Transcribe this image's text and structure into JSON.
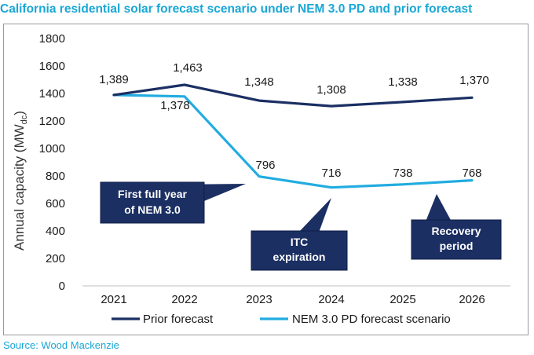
{
  "page": {
    "title": "California residential solar forecast scenario under NEM 3.0 PD and prior forecast",
    "source": "Source: Wood Mackenzie"
  },
  "colors": {
    "title": "#1aa7d6",
    "prior": "#1b2f63",
    "nem": "#22ace0",
    "callout_fill": "#1b2f63",
    "axis_text": "#1a1a1a"
  },
  "chart_data": {
    "type": "line",
    "ylabel_main": "Annual capacity (MW",
    "ylabel_sub": "dc",
    "ylabel_close": ")",
    "ylim": [
      0,
      1800
    ],
    "yticks": [
      0,
      200,
      400,
      600,
      800,
      1000,
      1200,
      1400,
      1600,
      1800
    ],
    "ytick_labels": [
      "0",
      "200",
      "400",
      "600",
      "800",
      "1000",
      "1200",
      "1400",
      "1600",
      "1800"
    ],
    "categories": [
      "2021",
      "2022",
      "2023",
      "2024",
      "2025",
      "2026"
    ],
    "grid": false,
    "legend_position": "bottom",
    "series": [
      {
        "name": "Prior forecast",
        "color": "#1b2f63",
        "values": [
          1389,
          1463,
          1348,
          1308,
          1338,
          1370
        ],
        "labels": [
          "1,389",
          "1,463",
          "1,348",
          "1,308",
          "1,338",
          "1,370"
        ]
      },
      {
        "name": "NEM 3.0 PD forecast scenario",
        "color": "#22ace0",
        "values": [
          1389,
          1378,
          796,
          716,
          738,
          768
        ],
        "labels": [
          "",
          "1,378",
          "796",
          "716",
          "738",
          "768"
        ]
      }
    ],
    "annotations": [
      {
        "lines": [
          "First full year",
          "of NEM 3.0"
        ]
      },
      {
        "lines": [
          "ITC",
          "expiration"
        ]
      },
      {
        "lines": [
          "Recovery",
          "period"
        ]
      }
    ]
  }
}
